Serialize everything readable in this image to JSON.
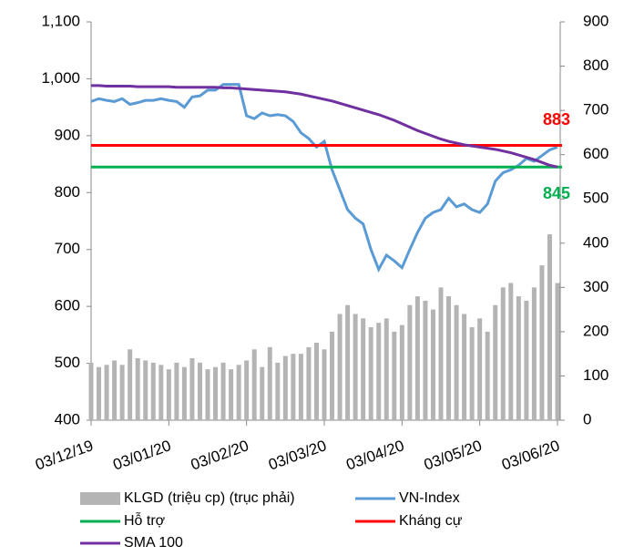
{
  "chart_data": {
    "type": "combo",
    "categories": [
      "03/12/19",
      null,
      null,
      null,
      null,
      null,
      null,
      null,
      null,
      null,
      "03/01/20",
      null,
      null,
      null,
      null,
      null,
      null,
      null,
      null,
      null,
      "03/02/20",
      null,
      null,
      null,
      null,
      null,
      null,
      null,
      null,
      null,
      "03/03/20",
      null,
      null,
      null,
      null,
      null,
      null,
      null,
      null,
      null,
      "03/04/20",
      null,
      null,
      null,
      null,
      null,
      null,
      null,
      null,
      null,
      "03/05/20",
      null,
      null,
      null,
      null,
      null,
      null,
      null,
      null,
      null,
      "03/06/20"
    ],
    "ylim": [
      400,
      1100
    ],
    "yticks": [
      400,
      500,
      600,
      700,
      800,
      900,
      {
        "value": 1000,
        "label": "1,000"
      },
      {
        "value": 1100,
        "label": "1,100"
      }
    ],
    "y2lim": [
      0,
      900
    ],
    "y2ticks": [
      0,
      100,
      200,
      300,
      400,
      500,
      600,
      700,
      800,
      900
    ],
    "series": [
      {
        "name": "KLGD (triệu cp) (trục phải)",
        "type": "bar",
        "axis": "y2",
        "color": "#b4b4b4",
        "values": [
          130,
          120,
          125,
          135,
          125,
          160,
          140,
          135,
          130,
          125,
          115,
          130,
          120,
          140,
          130,
          115,
          120,
          130,
          115,
          125,
          135,
          160,
          120,
          165,
          130,
          145,
          150,
          150,
          165,
          175,
          160,
          200,
          240,
          260,
          240,
          230,
          210,
          220,
          230,
          200,
          215,
          260,
          280,
          270,
          250,
          300,
          280,
          260,
          240,
          210,
          230,
          200,
          260,
          300,
          310,
          280,
          270,
          300,
          350,
          420,
          310
        ]
      },
      {
        "name": "VN-Index",
        "type": "line",
        "color": "#5b9bd5",
        "values": [
          960,
          965,
          962,
          960,
          965,
          955,
          958,
          962,
          962,
          965,
          962,
          960,
          950,
          968,
          970,
          980,
          980,
          990,
          990,
          990,
          935,
          930,
          940,
          935,
          937,
          935,
          925,
          905,
          895,
          880,
          890,
          840,
          805,
          770,
          755,
          745,
          700,
          665,
          690,
          680,
          668,
          700,
          730,
          755,
          765,
          770,
          790,
          775,
          780,
          770,
          765,
          780,
          820,
          835,
          840,
          848,
          860,
          855,
          865,
          875,
          880
        ]
      },
      {
        "name": "Hỗ trợ",
        "type": "hline",
        "color": "#00b050",
        "value": 845
      },
      {
        "name": "Kháng cự",
        "type": "hline",
        "color": "#ff0000",
        "value": 883
      },
      {
        "name": "SMA 100",
        "type": "line",
        "color": "#7030a0",
        "values": [
          988,
          988,
          987,
          987,
          987,
          987,
          986,
          986,
          986,
          986,
          986,
          985,
          985,
          985,
          985,
          985,
          985,
          984,
          984,
          983,
          982,
          981,
          980,
          979,
          978,
          977,
          975,
          973,
          970,
          967,
          964,
          961,
          957,
          953,
          949,
          945,
          941,
          937,
          932,
          927,
          921,
          915,
          909,
          904,
          899,
          894,
          890,
          887,
          884,
          882,
          880,
          878,
          876,
          873,
          870,
          866,
          862,
          858,
          853,
          848,
          845
        ]
      }
    ]
  }
}
